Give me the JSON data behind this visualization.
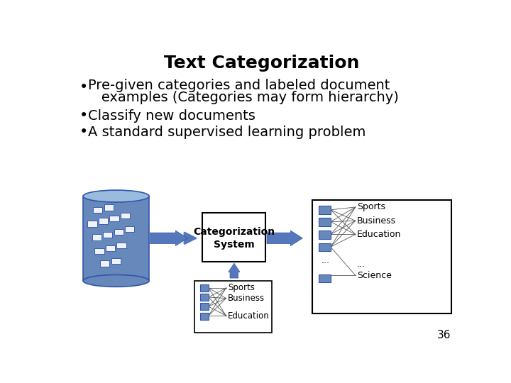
{
  "title": "Text Categorization",
  "bullet1_line1": "Pre-given categories and labeled document",
  "bullet1_line2": "   examples (Categories may form hierarchy)",
  "bullet2": "Classify new documents",
  "bullet3": "A standard supervised learning problem",
  "box_label_line1": "Categorization",
  "box_label_line2": "System",
  "input_categories": [
    "Sports",
    "Business",
    "Education"
  ],
  "output_categories": [
    "Sports",
    "Business",
    "Education",
    "Science"
  ],
  "slide_number": "36",
  "bg_color": "#ffffff",
  "blue_color": "#6688BB",
  "dark_blue": "#3355AA",
  "cylinder_body": "#6688BB",
  "cylinder_top": "#99BBDD",
  "arrow_color": "#5577BB",
  "text_color": "#000000",
  "title_fontsize": 18,
  "bullet_fontsize": 14,
  "diagram_fontsize": 9
}
